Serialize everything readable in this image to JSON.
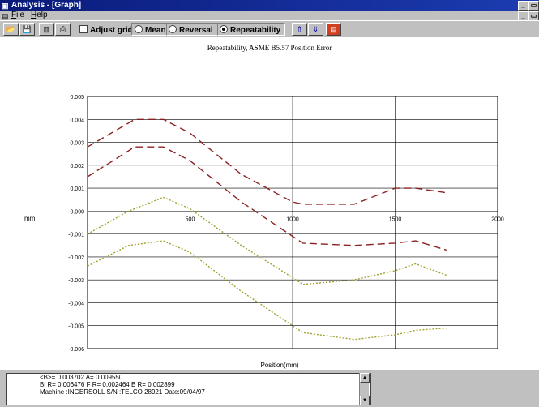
{
  "window": {
    "title": "Analysis - [Graph]"
  },
  "menu": {
    "file": "File",
    "help": "Help"
  },
  "toolbar": {
    "adjust_grid": "Adjust grid",
    "mean": "Mean",
    "reversal": "Reversal",
    "repeatability": "Repeatability",
    "selected": "Repeatability"
  },
  "chart_data": {
    "type": "line",
    "title": "Repeatability, ASME B5.57  Position Error",
    "xlabel": "Position(mm)",
    "ylabel": "mm",
    "xlim": [
      0,
      2000
    ],
    "ylim": [
      -0.006,
      0.005
    ],
    "x_ticks": [
      "500",
      "1000",
      "1500",
      "2000"
    ],
    "y_ticks": [
      "0.005",
      "0.004",
      "0.003",
      "0.002",
      "0.001",
      "0.000",
      "-0.001",
      "-0.002",
      "-0.003",
      "-0.004",
      "-0.005",
      "-0.006"
    ],
    "grid": true,
    "series": [
      {
        "style": "dashed",
        "color": "#8b2020",
        "x": [
          0,
          230,
          370,
          500,
          750,
          1000,
          1050,
          1300,
          1500,
          1600,
          1750
        ],
        "y": [
          0.0028,
          0.004,
          0.004,
          0.0034,
          0.0016,
          0.0004,
          0.0003,
          0.0003,
          0.001,
          0.001,
          0.0008
        ]
      },
      {
        "style": "dashed",
        "color": "#8b2020",
        "x": [
          0,
          230,
          370,
          500,
          750,
          1000,
          1050,
          1300,
          1500,
          1600,
          1750
        ],
        "y": [
          0.0015,
          0.0028,
          0.0028,
          0.0022,
          0.0004,
          -0.0011,
          -0.0014,
          -0.0015,
          -0.0014,
          -0.0013,
          -0.0017
        ]
      },
      {
        "style": "dotted",
        "color": "#a0a030",
        "x": [
          0,
          200,
          370,
          500,
          750,
          1000,
          1050,
          1300,
          1500,
          1600,
          1750
        ],
        "y": [
          -0.001,
          0.0,
          0.0006,
          0.0001,
          -0.0015,
          -0.0029,
          -0.0032,
          -0.003,
          -0.0026,
          -0.0023,
          -0.0028
        ]
      },
      {
        "style": "dotted",
        "color": "#a0a030",
        "x": [
          0,
          200,
          370,
          500,
          750,
          1000,
          1050,
          1300,
          1500,
          1600,
          1750
        ],
        "y": [
          -0.0024,
          -0.0015,
          -0.0013,
          -0.0018,
          -0.0035,
          -0.005,
          -0.0053,
          -0.0056,
          -0.0054,
          -0.0052,
          -0.0051
        ]
      }
    ]
  },
  "status": {
    "line1": "<B>= 0.003702   A= 0.009550",
    "line2": "Bi R= 0.006476   F R= 0.002464   B R= 0.002899",
    "line3": "Machine :INGERSOLL   S/N :TELCO 28921   Date:09/04/97"
  },
  "icons": [
    "open-icon",
    "save-icon",
    "chart-icon",
    "print-icon",
    "up-arrow-icon",
    "down-arrow-icon",
    "export-icon"
  ]
}
